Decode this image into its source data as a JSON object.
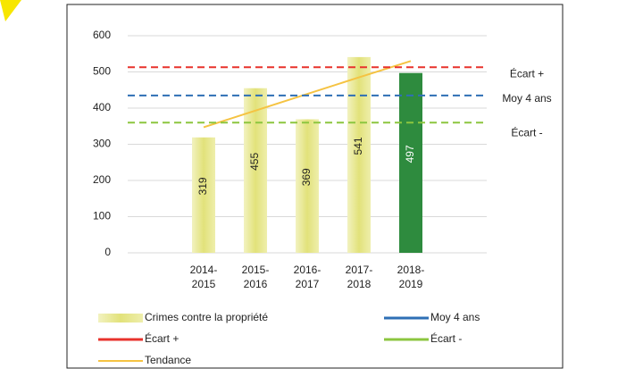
{
  "chart_data": {
    "type": "bar",
    "categories": [
      "2014-\n2015",
      "2015-\n2016",
      "2016-\n2017",
      "2017-\n2018",
      "2018-\n2019"
    ],
    "series": [
      {
        "name": "Crimes contre la propriété",
        "values": [
          319,
          455,
          369,
          541,
          497
        ],
        "colors": [
          "#e6e68a",
          "#e6e68a",
          "#e6e68a",
          "#e6e68a",
          "#2e8b3e"
        ],
        "color": "#e6e68a"
      },
      {
        "name": "Tendance",
        "type": "line",
        "color": "#f5c342",
        "values": [
          347,
          393,
          439,
          485,
          530
        ]
      }
    ],
    "reference_lines": [
      {
        "name": "Écart +",
        "value": 513,
        "color": "#e8322c"
      },
      {
        "name": "Moy 4 ans",
        "value": 435,
        "color": "#2e6fb5"
      },
      {
        "name": "Écart -",
        "value": 360,
        "color": "#8cc63f"
      }
    ],
    "ylim": [
      0,
      600
    ],
    "yticks": [
      0,
      100,
      200,
      300,
      400,
      500,
      600
    ],
    "grid": true
  }
}
